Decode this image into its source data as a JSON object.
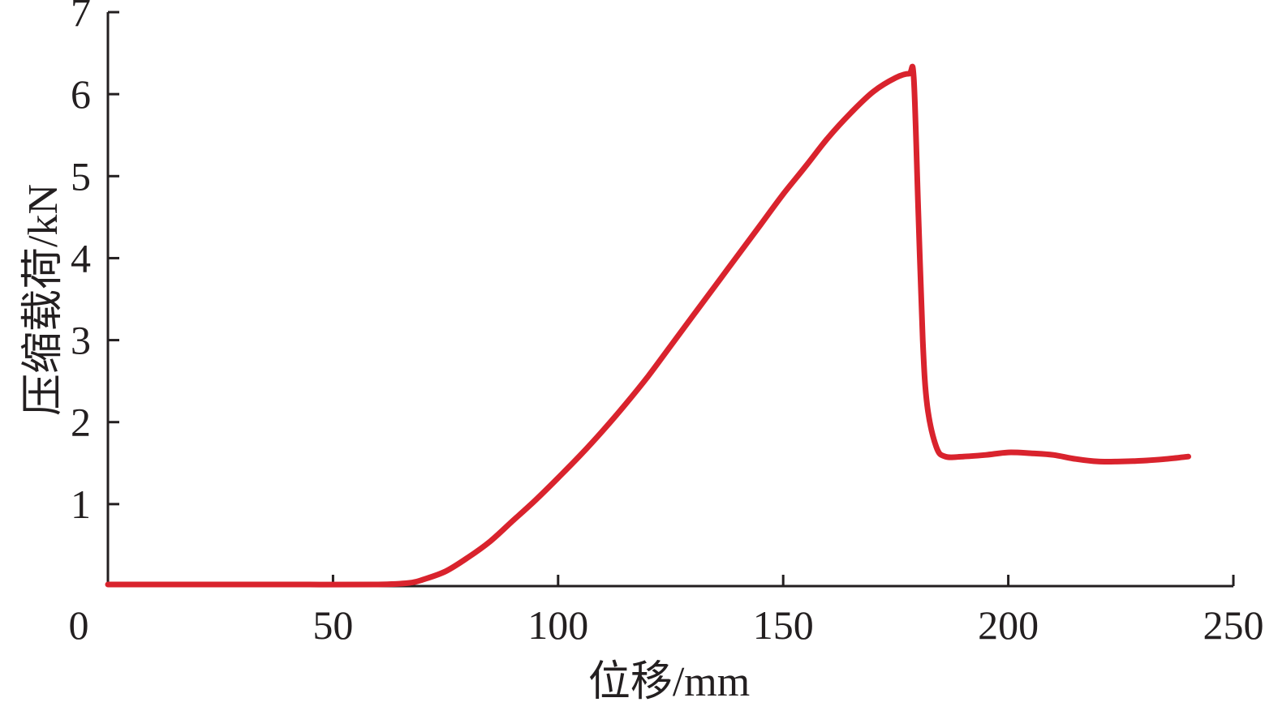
{
  "chart_data": {
    "type": "line",
    "title": "",
    "xlabel": "位移/mm",
    "ylabel": "压缩载荷/kN",
    "xlim": [
      0,
      250
    ],
    "ylim": [
      0,
      7
    ],
    "x_ticks": [
      0,
      50,
      100,
      150,
      200,
      250
    ],
    "x_tick_labels": [
      "0",
      "50",
      "100",
      "150",
      "200",
      "250"
    ],
    "y_ticks": [
      1,
      2,
      3,
      4,
      5,
      6,
      7
    ],
    "y_tick_labels": [
      "1",
      "2",
      "3",
      "4",
      "5",
      "6",
      "7"
    ],
    "grid": false,
    "legend": "none",
    "series": [
      {
        "color": "#d9232d",
        "x": [
          0,
          20,
          40,
          60,
          67,
          70,
          75,
          80,
          85,
          90,
          95,
          100,
          105,
          110,
          115,
          120,
          125,
          130,
          135,
          140,
          145,
          150,
          155,
          160,
          165,
          170,
          175,
          178,
          179,
          180,
          181,
          182,
          184,
          186,
          190,
          195,
          200,
          205,
          210,
          215,
          220,
          225,
          230,
          235,
          240
        ],
        "y": [
          0.02,
          0.02,
          0.02,
          0.02,
          0.04,
          0.08,
          0.18,
          0.35,
          0.55,
          0.8,
          1.05,
          1.32,
          1.6,
          1.9,
          2.22,
          2.56,
          2.93,
          3.3,
          3.67,
          4.04,
          4.41,
          4.78,
          5.12,
          5.47,
          5.77,
          6.03,
          6.2,
          6.25,
          6.2,
          4.6,
          3.0,
          2.2,
          1.7,
          1.58,
          1.58,
          1.6,
          1.63,
          1.62,
          1.6,
          1.55,
          1.52,
          1.52,
          1.53,
          1.55,
          1.58
        ]
      }
    ]
  }
}
